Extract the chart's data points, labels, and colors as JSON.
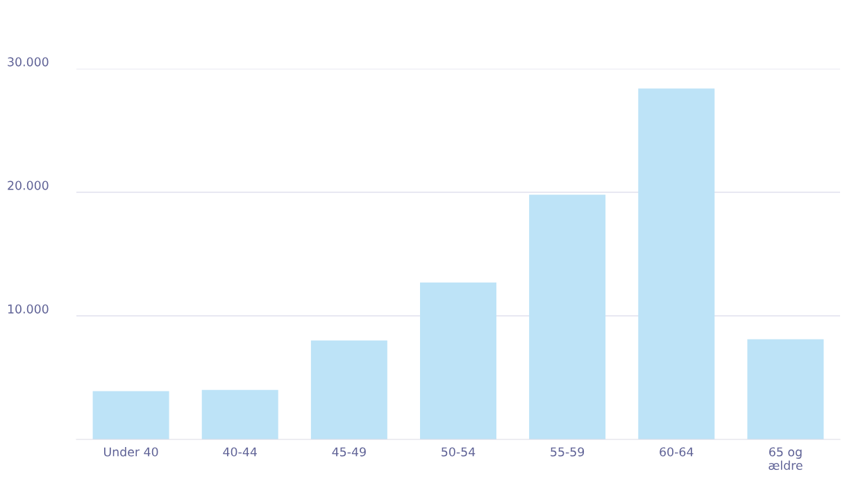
{
  "chart_data": {
    "type": "bar",
    "categories": [
      "Under 40",
      "40-44",
      "45-49",
      "50-54",
      "55-59",
      "60-64",
      "65 og\nældre"
    ],
    "values": [
      3900,
      4000,
      8000,
      12700,
      19800,
      28400,
      8100
    ],
    "color": "#bde3f7",
    "ylim": [
      0,
      30000
    ],
    "yticks": [
      {
        "value": 10000,
        "label": "10.000"
      },
      {
        "value": 20000,
        "label": "20.000"
      },
      {
        "value": 30000,
        "label": "30.000"
      }
    ],
    "grid": "y",
    "legend": false
  }
}
